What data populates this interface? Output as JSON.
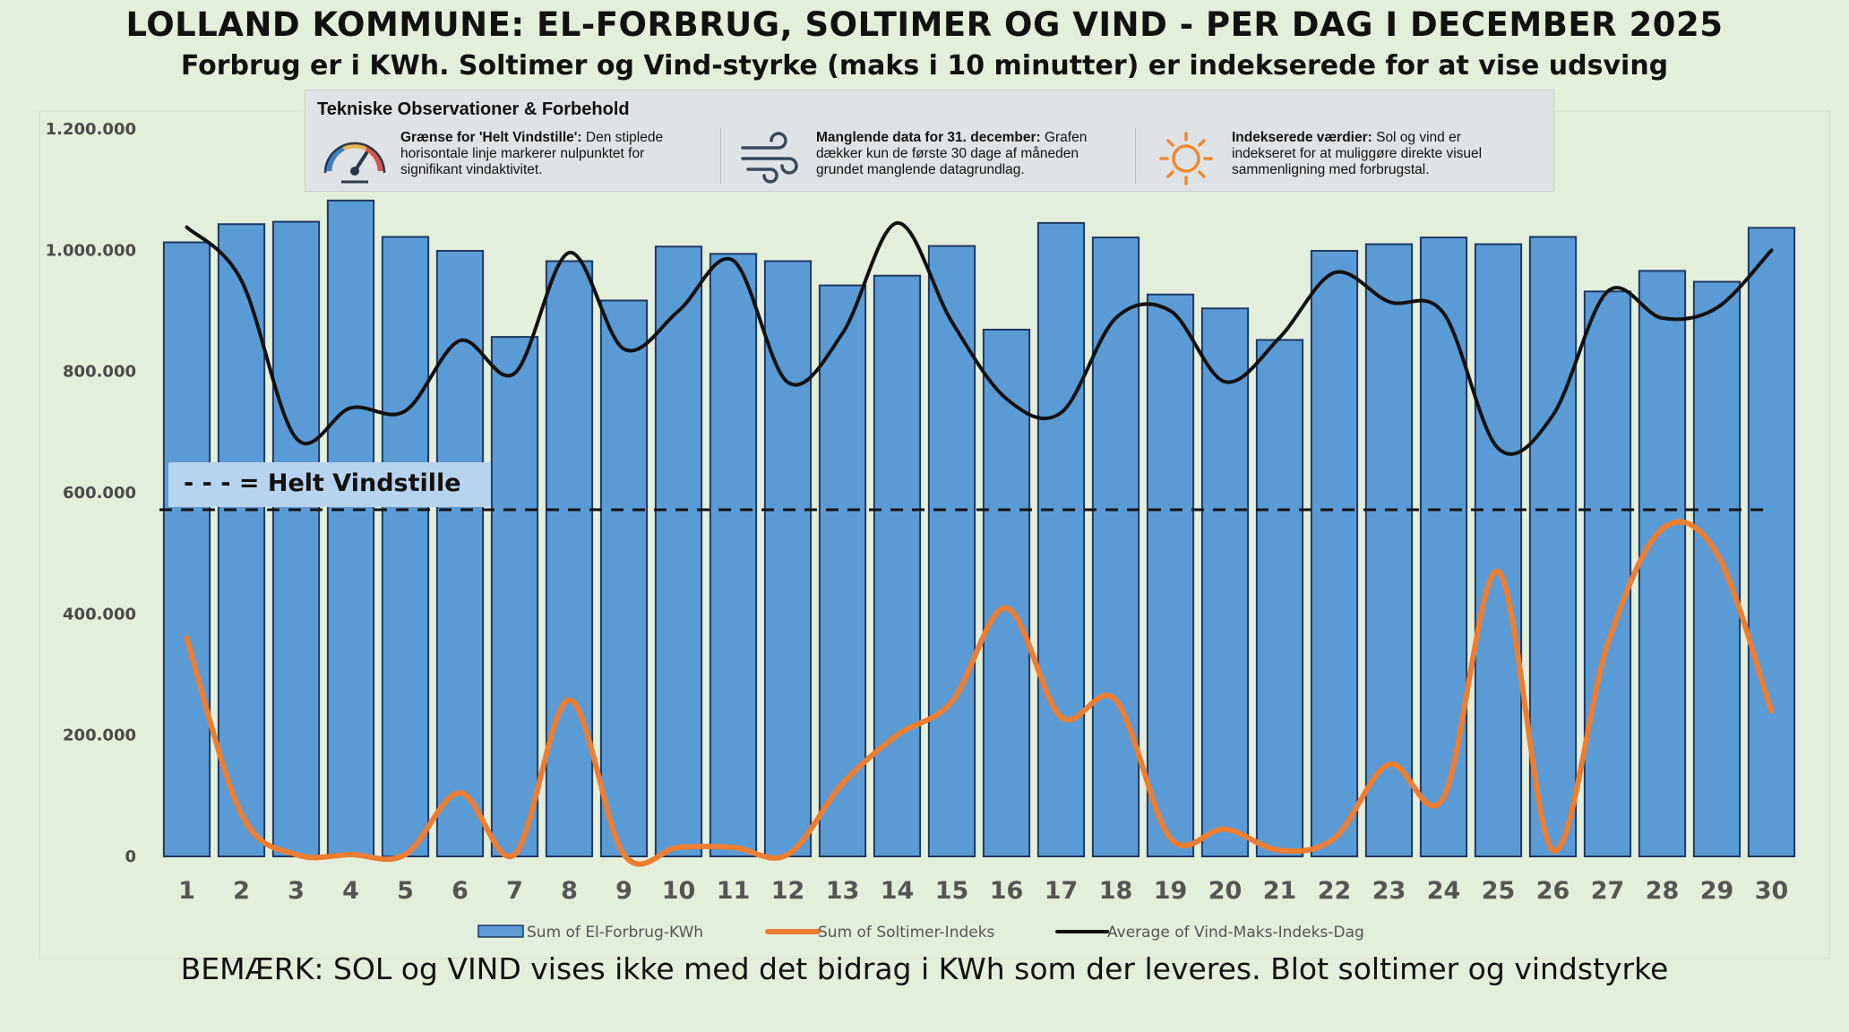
{
  "title": "LOLLAND KOMMUNE: EL-FORBRUG, SOLTIMER OG VIND - PER DAG I DECEMBER 2025",
  "subtitle": "Forbrug er i KWh. Soltimer og Vind-styrke (maks i 10 minutter) er indekserede for at vise udsving",
  "note": "BEMÆRK: SOL og VIND vises ikke med det bidrag i KWh som der leveres. Blot soltimer og vindstyrke",
  "infobox": {
    "title": "Tekniske Observationer & Forbehold",
    "items": [
      {
        "icon": "gauge-icon",
        "bold": "Grænse for 'Helt Vindstille':",
        "text": " Den stiplede horisontale linje markerer nulpunktet for signifikant vindaktivitet."
      },
      {
        "icon": "wind-icon",
        "bold": "Manglende data for 31. december:",
        "text": " Grafen dækker kun de første 30 dage af måneden grundet manglende datagrundlag."
      },
      {
        "icon": "sun-icon",
        "bold": "Indekserede værdier:",
        "text": " Sol og vind er indekseret for at muliggøre direkte visuel sammenligning med forbrugstal."
      }
    ]
  },
  "calm_label": "- - -  = Helt Vindstille",
  "chart_data": {
    "type": "bar",
    "categories": [
      "1",
      "2",
      "3",
      "4",
      "5",
      "6",
      "7",
      "8",
      "9",
      "10",
      "11",
      "12",
      "13",
      "14",
      "15",
      "16",
      "17",
      "18",
      "19",
      "20",
      "21",
      "22",
      "23",
      "24",
      "25",
      "26",
      "27",
      "28",
      "29",
      "30"
    ],
    "ylim": [
      0,
      1200000
    ],
    "yticks": [
      0,
      200000,
      400000,
      600000,
      800000,
      1000000,
      1200000
    ],
    "ytick_labels": [
      "0",
      "200.000",
      "400.000",
      "600.000",
      "800.000",
      "1.000.000",
      "1.200.000"
    ],
    "threshold": 572000,
    "series": [
      {
        "name": "Sum of El-Forbrug-KWh",
        "kind": "bar",
        "color": "#5b9bd5",
        "values": [
          1013000,
          1043000,
          1047000,
          1082000,
          1022000,
          999000,
          857000,
          982000,
          917000,
          1006000,
          994000,
          982000,
          942000,
          958000,
          1007000,
          869000,
          1045000,
          1021000,
          927000,
          904000,
          852000,
          999000,
          1010000,
          1021000,
          1010000,
          1022000,
          932000,
          966000,
          948000,
          1037000
        ]
      },
      {
        "name": "Sum of Soltimer-Indeks",
        "kind": "line",
        "color": "#ed7d31",
        "values": [
          360000,
          70000,
          3000,
          3000,
          3000,
          105000,
          3000,
          258000,
          3000,
          15000,
          15000,
          3000,
          120000,
          200000,
          255000,
          410000,
          230000,
          258000,
          30000,
          45000,
          10000,
          30000,
          152000,
          97000,
          470000,
          10000,
          350000,
          540000,
          500000,
          240000
        ]
      },
      {
        "name": "Average of Vind-Maks-Indeks-Dag",
        "kind": "line",
        "color": "#111111",
        "values": [
          1038000,
          950000,
          690000,
          740000,
          735000,
          851000,
          797000,
          996000,
          837000,
          900000,
          983000,
          782000,
          863000,
          1045000,
          882000,
          755000,
          732000,
          888000,
          900000,
          783000,
          856000,
          963000,
          915000,
          896000,
          673000,
          728000,
          932000,
          888000,
          905000,
          1000000
        ]
      }
    ],
    "legend_position": "bottom"
  }
}
